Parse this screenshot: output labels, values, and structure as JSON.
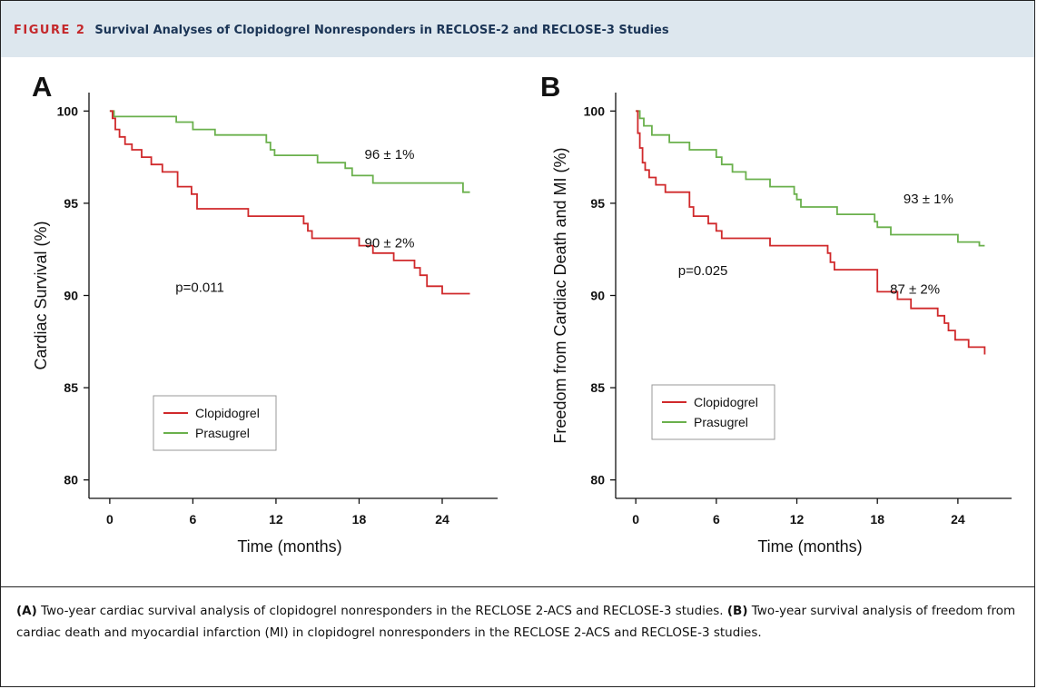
{
  "header": {
    "figure_label": "FIGURE 2",
    "title": "Survival Analyses of Clopidogrel Nonresponders in RECLOSE-2 and RECLOSE-3 Studies"
  },
  "caption": {
    "a_label": "(A)",
    "a_text": " Two-year cardiac survival analysis of clopidogrel nonresponders in the RECLOSE 2-ACS and RECLOSE-3 studies. ",
    "b_label": "(B)",
    "b_text": " Two-year survival analysis of freedom from cardiac death and myocardial infarction (MI) in clopidogrel nonresponders in the RECLOSE 2-ACS and RECLOSE-3 studies."
  },
  "colors": {
    "clopidogrel": "#d0292b",
    "prasugrel": "#6ab04c",
    "axis": "#111111"
  },
  "chart_data": [
    {
      "type": "line",
      "step": true,
      "panel_label": "A",
      "xlabel": "Time (months)",
      "ylabel": "Cardiac  Survival (%)",
      "xlim": [
        -1.5,
        28
      ],
      "ylim": [
        79,
        101
      ],
      "xticks": [
        0,
        6,
        12,
        18,
        24
      ],
      "yticks": [
        80,
        85,
        90,
        95,
        100
      ],
      "legend": {
        "position": "lower-left",
        "entries": [
          "Clopidogrel",
          "Prasugrel"
        ]
      },
      "annotations": [
        {
          "text": "p=0.011",
          "x": 6.5,
          "y": 90.2
        },
        {
          "text": "96 ± 1%",
          "x": 20.2,
          "y": 97.4
        },
        {
          "text": "90 ± 2%",
          "x": 20.2,
          "y": 92.6
        }
      ],
      "series": [
        {
          "name": "Clopidogrel",
          "color_key": "clopidogrel",
          "x": [
            0,
            0.2,
            0.4,
            0.7,
            1.1,
            1.6,
            2.3,
            3.0,
            3.8,
            4.9,
            5.9,
            6.3,
            10.0,
            14.0,
            14.3,
            14.6,
            18.0,
            19.0,
            20.5,
            22.0,
            22.4,
            22.9,
            24.0,
            26.0
          ],
          "y": [
            100,
            99.6,
            99.0,
            98.6,
            98.2,
            97.9,
            97.5,
            97.1,
            96.7,
            95.9,
            95.5,
            94.7,
            94.3,
            93.9,
            93.5,
            93.1,
            92.7,
            92.3,
            91.9,
            91.5,
            91.1,
            90.5,
            90.1,
            90.1
          ]
        },
        {
          "name": "Prasugrel",
          "color_key": "prasugrel",
          "x": [
            0,
            0.3,
            4.8,
            6.0,
            7.6,
            11.3,
            11.6,
            11.9,
            15.0,
            17.0,
            17.5,
            19.0,
            25.5,
            26.0
          ],
          "y": [
            100,
            99.7,
            99.4,
            99.0,
            98.7,
            98.3,
            97.9,
            97.6,
            97.2,
            96.9,
            96.5,
            96.1,
            95.6,
            95.6
          ]
        }
      ]
    },
    {
      "type": "line",
      "step": true,
      "panel_label": "B",
      "xlabel": "Time (months)",
      "ylabel": "Freedom from Cardiac  Death and MI (%)",
      "xlim": [
        -1.5,
        28
      ],
      "ylim": [
        79,
        101
      ],
      "xticks": [
        0,
        6,
        12,
        18,
        24
      ],
      "yticks": [
        80,
        85,
        90,
        95,
        100
      ],
      "legend": {
        "position": "lower-left",
        "entries": [
          "Clopidogrel",
          "Prasugrel"
        ]
      },
      "annotations": [
        {
          "text": "p=0.025",
          "x": 5.0,
          "y": 91.1
        },
        {
          "text": "93 ± 1%",
          "x": 21.8,
          "y": 95.0
        },
        {
          "text": "87 ± 2%",
          "x": 20.8,
          "y": 90.1
        }
      ],
      "series": [
        {
          "name": "Clopidogrel",
          "color_key": "clopidogrel",
          "x": [
            0,
            0.15,
            0.3,
            0.5,
            0.7,
            1.0,
            1.5,
            2.2,
            3.0,
            4.0,
            4.3,
            5.4,
            6.0,
            6.4,
            10.0,
            14.3,
            14.5,
            14.8,
            18.0,
            19.5,
            20.5,
            22.5,
            23.0,
            23.3,
            23.8,
            24.8,
            26.0
          ],
          "y": [
            100,
            98.8,
            98.0,
            97.2,
            96.8,
            96.4,
            96.0,
            95.6,
            95.6,
            94.8,
            94.3,
            93.9,
            93.5,
            93.1,
            92.7,
            92.3,
            91.8,
            91.4,
            90.2,
            89.8,
            89.3,
            88.9,
            88.5,
            88.1,
            87.6,
            87.2,
            86.8
          ]
        },
        {
          "name": "Prasugrel",
          "color_key": "prasugrel",
          "x": [
            0,
            0.3,
            0.6,
            1.2,
            2.5,
            4.0,
            6.0,
            6.4,
            7.2,
            8.2,
            10.0,
            11.8,
            12.0,
            12.3,
            15.0,
            17.8,
            18.0,
            19.0,
            24.0,
            25.6,
            26.0
          ],
          "y": [
            100,
            99.6,
            99.2,
            98.7,
            98.3,
            97.9,
            97.5,
            97.1,
            96.7,
            96.3,
            95.9,
            95.5,
            95.2,
            94.8,
            94.4,
            94.0,
            93.7,
            93.3,
            92.9,
            92.7,
            92.7
          ]
        }
      ]
    }
  ]
}
